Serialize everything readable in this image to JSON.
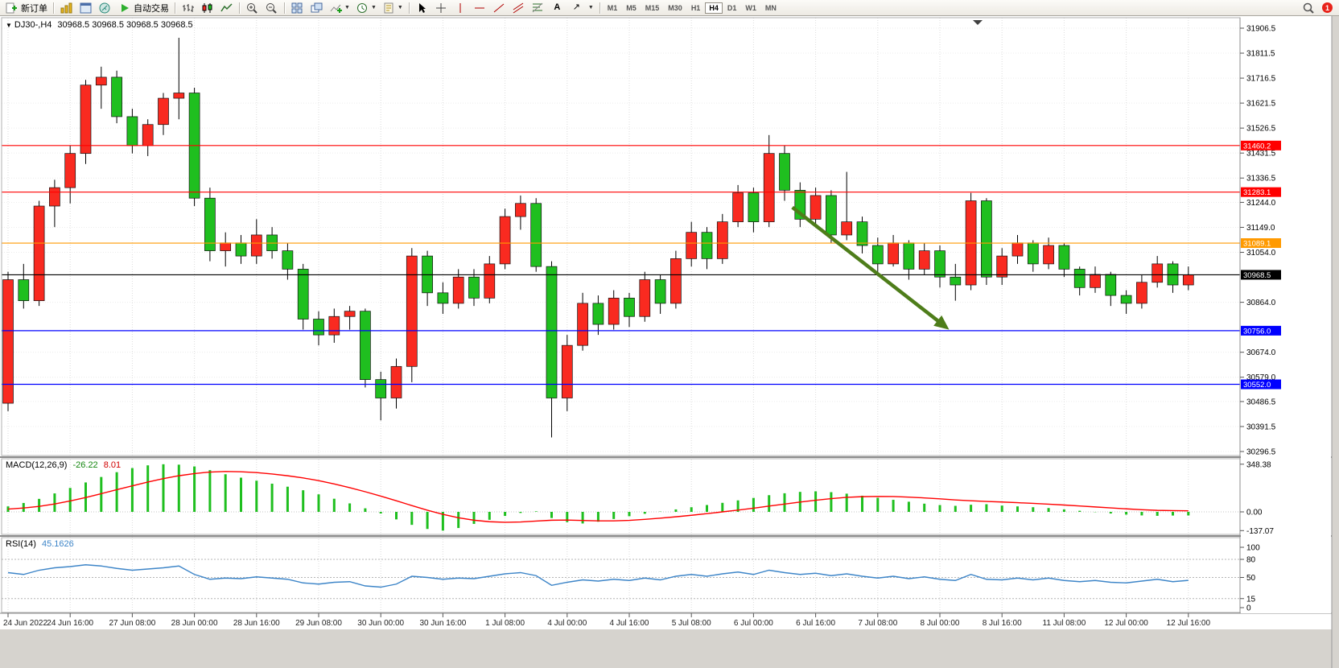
{
  "toolbar": {
    "new_order_label": "新订单",
    "autotrading_label": "自动交易",
    "timeframes": [
      "M1",
      "M5",
      "M15",
      "M30",
      "H1",
      "H4",
      "D1",
      "W1",
      "MN"
    ],
    "active_timeframe": "H4",
    "notification_count": "1"
  },
  "chart_data": {
    "type": "candlestick",
    "symbol": "DJ30-,H4",
    "ohlc_text": "30968.5 30968.5 30968.5 30968.5",
    "price_range": [
      30296.5,
      31906.5
    ],
    "price_axis_ticks": [
      31906.5,
      31811.5,
      31716.5,
      31621.5,
      31526.5,
      31431.5,
      31336.5,
      31244.0,
      31149.0,
      31054.0,
      30864.0,
      30674.0,
      30579.0,
      30486.5,
      30391.5,
      30296.5
    ],
    "time_labels": [
      "24 Jun 2022",
      "24 Jun 16:00",
      "27 Jun 08:00",
      "28 Jun 00:00",
      "28 Jun 16:00",
      "29 Jun 08:00",
      "30 Jun 00:00",
      "30 Jun 16:00",
      "1 Jul 08:00",
      "4 Jul 00:00",
      "4 Jul 16:00",
      "5 Jul 08:00",
      "6 Jul 00:00",
      "6 Jul 16:00",
      "7 Jul 08:00",
      "8 Jul 00:00",
      "8 Jul 16:00",
      "11 Jul 08:00",
      "12 Jul 00:00",
      "12 Jul 16:00"
    ],
    "candles": [
      [
        30480,
        30980,
        30450,
        30950
      ],
      [
        30950,
        31010,
        30840,
        30870
      ],
      [
        30870,
        31250,
        30850,
        31230
      ],
      [
        31230,
        31330,
        31150,
        31300
      ],
      [
        31300,
        31460,
        31240,
        31430
      ],
      [
        31430,
        31710,
        31390,
        31690
      ],
      [
        31690,
        31760,
        31600,
        31720
      ],
      [
        31720,
        31745,
        31545,
        31570
      ],
      [
        31570,
        31600,
        31430,
        31460
      ],
      [
        31460,
        31560,
        31420,
        31540
      ],
      [
        31540,
        31660,
        31500,
        31640
      ],
      [
        31640,
        31870,
        31560,
        31660
      ],
      [
        31660,
        31680,
        31230,
        31260
      ],
      [
        31260,
        31300,
        31020,
        31060
      ],
      [
        31060,
        31130,
        31000,
        31090
      ],
      [
        31090,
        31120,
        31010,
        31040
      ],
      [
        31040,
        31180,
        31010,
        31120
      ],
      [
        31120,
        31150,
        31030,
        31060
      ],
      [
        31060,
        31090,
        30950,
        30990
      ],
      [
        30990,
        31010,
        30760,
        30800
      ],
      [
        30800,
        30830,
        30700,
        30740
      ],
      [
        30740,
        30840,
        30710,
        30810
      ],
      [
        30810,
        30850,
        30760,
        30830
      ],
      [
        30830,
        30840,
        30540,
        30570
      ],
      [
        30570,
        30600,
        30415,
        30500
      ],
      [
        30500,
        30650,
        30460,
        30620
      ],
      [
        30620,
        31070,
        30560,
        31040
      ],
      [
        31040,
        31060,
        30850,
        30900
      ],
      [
        30900,
        30940,
        30820,
        30860
      ],
      [
        30860,
        30990,
        30840,
        30960
      ],
      [
        30960,
        30990,
        30850,
        30880
      ],
      [
        30880,
        31040,
        30860,
        31010
      ],
      [
        31010,
        31220,
        30990,
        31190
      ],
      [
        31190,
        31270,
        31140,
        31240
      ],
      [
        31240,
        31260,
        30980,
        31000
      ],
      [
        31000,
        31020,
        30350,
        30500
      ],
      [
        30500,
        30740,
        30450,
        30700
      ],
      [
        30700,
        30900,
        30680,
        30860
      ],
      [
        30860,
        30890,
        30740,
        30780
      ],
      [
        30780,
        30910,
        30760,
        30880
      ],
      [
        30880,
        30900,
        30770,
        30810
      ],
      [
        30810,
        30980,
        30790,
        30950
      ],
      [
        30950,
        30970,
        30820,
        30860
      ],
      [
        30860,
        31060,
        30840,
        31030
      ],
      [
        31030,
        31170,
        31000,
        31130
      ],
      [
        31130,
        31150,
        30990,
        31030
      ],
      [
        31030,
        31200,
        31010,
        31170
      ],
      [
        31170,
        31310,
        31150,
        31280
      ],
      [
        31280,
        31300,
        31130,
        31170
      ],
      [
        31170,
        31500,
        31150,
        31430
      ],
      [
        31430,
        31460,
        31250,
        31290
      ],
      [
        31290,
        31320,
        31150,
        31180
      ],
      [
        31180,
        31300,
        31160,
        31270
      ],
      [
        31270,
        31290,
        31090,
        31120
      ],
      [
        31120,
        31360,
        31100,
        31170
      ],
      [
        31170,
        31190,
        31050,
        31080
      ],
      [
        31080,
        31110,
        30980,
        31010
      ],
      [
        31010,
        31120,
        31000,
        31090
      ],
      [
        31090,
        31100,
        30950,
        30990
      ],
      [
        30990,
        31090,
        30970,
        31060
      ],
      [
        31060,
        31080,
        30920,
        30960
      ],
      [
        30960,
        31010,
        30870,
        30930
      ],
      [
        30930,
        31280,
        30910,
        31250
      ],
      [
        31250,
        31260,
        30930,
        30960
      ],
      [
        30960,
        31070,
        30930,
        31040
      ],
      [
        31040,
        31120,
        31010,
        31090
      ],
      [
        31090,
        31100,
        30980,
        31010
      ],
      [
        31010,
        31110,
        30990,
        31080
      ],
      [
        31080,
        31090,
        30960,
        30990
      ],
      [
        30990,
        31000,
        30890,
        30920
      ],
      [
        30920,
        31000,
        30900,
        30970
      ],
      [
        30970,
        30980,
        30850,
        30890
      ],
      [
        30890,
        30910,
        30820,
        30860
      ],
      [
        30860,
        30970,
        30840,
        30940
      ],
      [
        30940,
        31040,
        30920,
        31010
      ],
      [
        31010,
        31020,
        30900,
        30930
      ],
      [
        30930,
        31000,
        30910,
        30968.5
      ]
    ],
    "hlines": [
      {
        "price": 31460.2,
        "label": "31460.2",
        "color": "#ff0000"
      },
      {
        "price": 31283.1,
        "label": "31283.1",
        "color": "#ff0000"
      },
      {
        "price": 31089.1,
        "label": "31089.1",
        "color": "#ff9a00"
      },
      {
        "price": 30756.0,
        "label": "30756.0",
        "color": "#0000ff"
      },
      {
        "price": 30552.0,
        "label": "30552.0",
        "color": "#0000ff"
      }
    ],
    "current_price": {
      "price": 30968.5,
      "label": "30968.5",
      "color": "#000000"
    },
    "trend_arrow": {
      "from_index": 50.5,
      "from_price": 31225,
      "to_index": 60.6,
      "to_price": 30760,
      "color": "#4e7d1a"
    },
    "colors": {
      "bull": "#f92a20",
      "bear": "#1fbf1f",
      "wick": "#000000",
      "grid": "#dcdcdc",
      "background": "#ffffff"
    },
    "macd": {
      "label": "MACD(12,26,9)",
      "value": "-26.22",
      "signal": "8.01",
      "axis_labels": [
        "348.38",
        "0.00",
        "-137.07"
      ],
      "axis_values": [
        348.38,
        0,
        -137.07
      ],
      "histogram_color": "#1fbf1f",
      "signal_color": "#ff0000",
      "histogram": [
        40,
        65,
        95,
        135,
        175,
        215,
        255,
        290,
        320,
        340,
        348,
        345,
        332,
        305,
        275,
        250,
        228,
        206,
        184,
        158,
        128,
        96,
        62,
        26,
        -12,
        -55,
        -95,
        -125,
        -137,
        -118,
        -88,
        -58,
        -30,
        -8,
        4,
        -45,
        -75,
        -85,
        -72,
        -52,
        -32,
        -14,
        2,
        18,
        34,
        50,
        66,
        84,
        102,
        122,
        136,
        146,
        150,
        144,
        133,
        118,
        103,
        88,
        74,
        60,
        50,
        44,
        52,
        56,
        46,
        40,
        34,
        28,
        18,
        8,
        -2,
        -12,
        -20,
        -26,
        -29,
        -27,
        -26.22
      ],
      "signal_line": [
        20,
        28,
        40,
        58,
        80,
        105,
        133,
        162,
        190,
        218,
        243,
        264,
        280,
        291,
        295,
        293,
        287,
        277,
        264,
        248,
        228,
        204,
        177,
        147,
        115,
        81,
        46,
        12,
        -18,
        -43,
        -61,
        -72,
        -76,
        -74,
        -67,
        -61,
        -60,
        -63,
        -66,
        -66,
        -62,
        -55,
        -46,
        -36,
        -25,
        -13,
        0,
        13,
        27,
        42,
        57,
        72,
        85,
        97,
        106,
        111,
        113,
        112,
        108,
        102,
        95,
        87,
        81,
        76,
        72,
        67,
        62,
        56,
        50,
        43,
        36,
        29,
        22,
        16,
        11,
        9,
        8.01
      ]
    },
    "rsi": {
      "label": "RSI(14)",
      "value": "45.1626",
      "levels": [
        100,
        80,
        50,
        15,
        0
      ],
      "line_color": "#3d85c8",
      "series": [
        58,
        55,
        62,
        66,
        68,
        71,
        69,
        65,
        62,
        64,
        66,
        69,
        55,
        47,
        49,
        48,
        51,
        49,
        47,
        41,
        39,
        42,
        43,
        36,
        34,
        39,
        52,
        50,
        47,
        49,
        48,
        52,
        56,
        58,
        53,
        37,
        42,
        46,
        44,
        47,
        45,
        49,
        46,
        52,
        55,
        52,
        56,
        59,
        55,
        62,
        58,
        55,
        57,
        53,
        56,
        52,
        49,
        52,
        48,
        51,
        47,
        45,
        55,
        47,
        46,
        49,
        46,
        49,
        45,
        43,
        45,
        42,
        41,
        44,
        47,
        43,
        45.16
      ]
    }
  }
}
